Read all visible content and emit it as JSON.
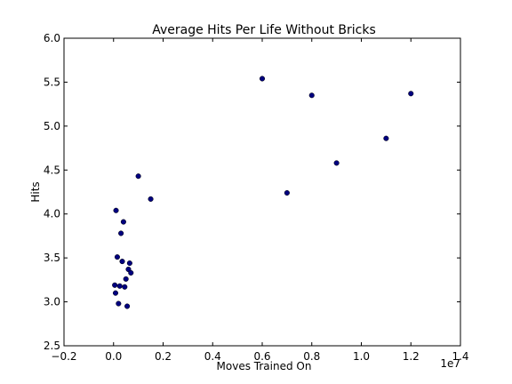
{
  "chart_data": {
    "type": "scatter",
    "title": "Average Hits Per Life Without Bricks",
    "xlabel": "Moves Trained On",
    "ylabel": "Hits",
    "x_offset_label": "1e7",
    "xlim": [
      -0.2,
      1.4
    ],
    "ylim": [
      2.5,
      6.0
    ],
    "xticks": [
      -0.2,
      0.0,
      0.2,
      0.4,
      0.6,
      0.8,
      1.0,
      1.2,
      1.4
    ],
    "xtick_labels": [
      "−0.2",
      "0.0",
      "0.2",
      "0.4",
      "0.6",
      "0.8",
      "1.0",
      "1.2",
      "1.4"
    ],
    "yticks": [
      2.5,
      3.0,
      3.5,
      4.0,
      4.5,
      5.0,
      5.5,
      6.0
    ],
    "ytick_labels": [
      "2.5",
      "3.0",
      "3.5",
      "4.0",
      "4.5",
      "5.0",
      "5.5",
      "6.0"
    ],
    "grid": false,
    "marker_color": "#00007f",
    "points": [
      {
        "x": 0.005,
        "y": 3.19
      },
      {
        "x": 0.008,
        "y": 3.1
      },
      {
        "x": 0.01,
        "y": 4.04
      },
      {
        "x": 0.015,
        "y": 3.51
      },
      {
        "x": 0.02,
        "y": 2.98
      },
      {
        "x": 0.025,
        "y": 3.18
      },
      {
        "x": 0.03,
        "y": 3.78
      },
      {
        "x": 0.035,
        "y": 3.46
      },
      {
        "x": 0.04,
        "y": 3.91
      },
      {
        "x": 0.045,
        "y": 3.17
      },
      {
        "x": 0.05,
        "y": 3.26
      },
      {
        "x": 0.055,
        "y": 2.95
      },
      {
        "x": 0.06,
        "y": 3.37
      },
      {
        "x": 0.065,
        "y": 3.44
      },
      {
        "x": 0.07,
        "y": 3.33
      },
      {
        "x": 0.1,
        "y": 4.43
      },
      {
        "x": 0.15,
        "y": 4.17
      },
      {
        "x": 0.6,
        "y": 5.54
      },
      {
        "x": 0.7,
        "y": 4.24
      },
      {
        "x": 0.8,
        "y": 5.35
      },
      {
        "x": 0.9,
        "y": 4.58
      },
      {
        "x": 1.1,
        "y": 4.86
      },
      {
        "x": 1.2,
        "y": 5.37
      }
    ]
  }
}
